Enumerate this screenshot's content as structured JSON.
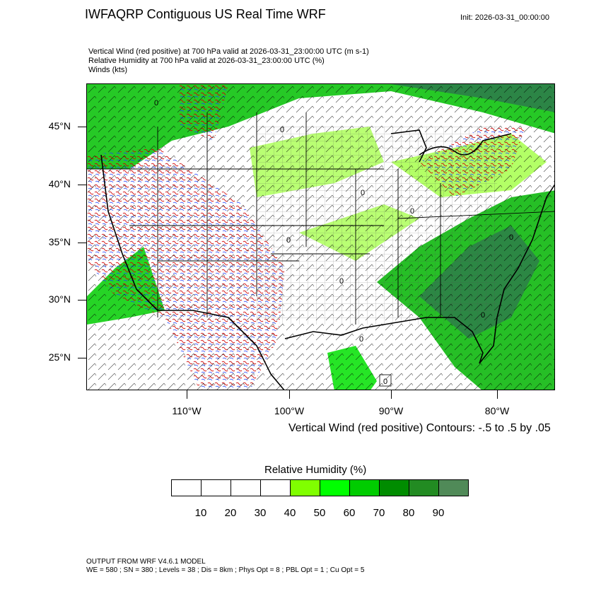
{
  "header": {
    "title": "IWFAQRP Contiguous US Real Time WRF",
    "init": "Init: 2026-03-31_00:00:00"
  },
  "subtitles": [
    "Vertical Wind (red positive) at 700 hPa valid at 2026-03-31_23:00:00 UTC   (m s-1)",
    "Relative Humidity at 700 hPa valid at 2026-03-31_23:00:00 UTC   (%)",
    "Winds   (kts)"
  ],
  "map": {
    "lat_labels": [
      "45°N",
      "40°N",
      "35°N",
      "30°N",
      "25°N"
    ],
    "lon_labels": [
      "110°W",
      "100°W",
      "90°W",
      "80°W"
    ],
    "contour_label": "0",
    "colors": {
      "moist_light": "#80ff00",
      "moist_mid": "#00d000",
      "moist_dark": "#1e8c1e",
      "moist_darkest": "#4a8a55",
      "updraft": "#d00000",
      "downdraft": "#1a3cff"
    }
  },
  "contour_note": "Vertical Wind (red positive) Contours: -.5 to .5 by .05",
  "colorbar": {
    "title": "Relative Humidity  (%)",
    "colors": [
      "#ffffff",
      "#ffffff",
      "#ffffff",
      "#ffffff",
      "#80ff00",
      "#00ff00",
      "#00cc00",
      "#008c00",
      "#228b22",
      "#508a58"
    ],
    "labels": [
      "10",
      "20",
      "30",
      "40",
      "50",
      "60",
      "70",
      "80",
      "90"
    ]
  },
  "footer": [
    "OUTPUT FROM WRF V4.6.1 MODEL",
    "WE = 580 ; SN = 380 ; Levels = 38 ; Dis = 8km ; Phys Opt = 8 ; PBL Opt = 1 ; Cu Opt = 5"
  ]
}
